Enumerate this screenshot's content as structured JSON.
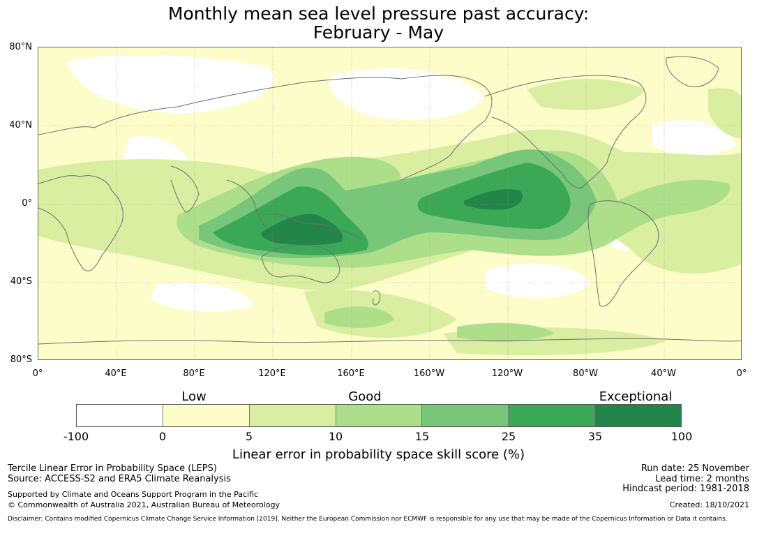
{
  "title": {
    "line1": "Monthly mean sea level pressure past accuracy:",
    "line2": "February - May"
  },
  "map": {
    "lat_labels": [
      "80°N",
      "40°N",
      "0°",
      "40°S",
      "80°S"
    ],
    "lon_labels": [
      "0°",
      "40°E",
      "80°E",
      "120°E",
      "160°E",
      "160°W",
      "120°W",
      "80°W",
      "40°W",
      "0°"
    ]
  },
  "legend": {
    "categories": [
      "Low",
      "Good",
      "Exceptional"
    ],
    "ticks": [
      "-100",
      "0",
      "5",
      "10",
      "15",
      "25",
      "35",
      "100"
    ],
    "colors": [
      "#ffffff",
      "#fdfdc9",
      "#d9eea0",
      "#addf8b",
      "#77c679",
      "#3ba858",
      "#23854a"
    ],
    "label": "Linear error in probability space skill score (%)"
  },
  "footer": {
    "method": "Tercile Linear Error in Probability Space (LEPS)",
    "source": "Source: ACCESS-S2 and ERA5 Climate Reanalysis",
    "support": "Supported by Climate and Oceans Support Program in the Pacific",
    "copyright": "© Commonwealth of Australia 2021, Australian Bureau of Meteorology",
    "run_date": "Run date: 25 November",
    "lead_time": "Lead time: 2 months",
    "hindcast": "Hindcast period: 1981-2018",
    "created": "Created: 18/10/2021",
    "disclaimer": "Disclaimer: Contains modified Copernicus Climate Change Service Information [2019]. Neither the European Commission nor ECMWF is responsible for any use that may be made of the Copernicus Information or Data it contains."
  }
}
